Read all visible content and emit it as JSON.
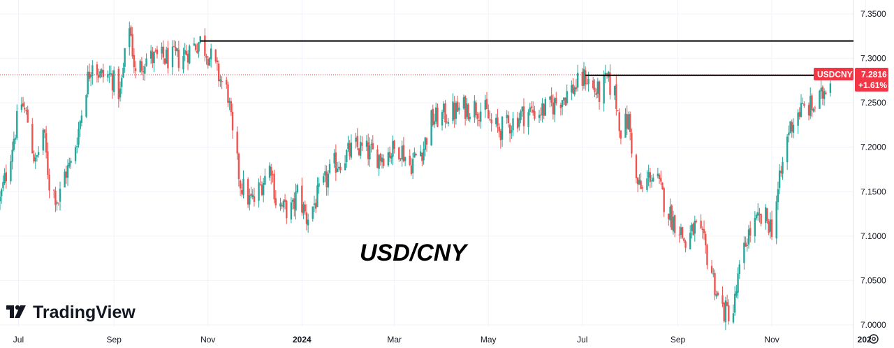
{
  "chart_data": {
    "type": "candlestick",
    "symbol": "USDCNY",
    "annotation": "USD/CNY",
    "brand": "TradingView",
    "last_price": "7.2816",
    "change_pct": "+1.61%",
    "ylim": [
      7.0,
      7.36
    ],
    "y_ticks": [
      "7.3500",
      "7.3000",
      "7.2500",
      "7.2000",
      "7.1500",
      "7.1000",
      "7.0500",
      "7.0000"
    ],
    "y_tick_values": [
      7.35,
      7.3,
      7.25,
      7.2,
      7.15,
      7.1,
      7.05,
      7.0
    ],
    "x_ticks": [
      "Jul",
      "Sep",
      "Nov",
      "2024",
      "Mar",
      "May",
      "Jul",
      "Sep",
      "Nov",
      "202"
    ],
    "x_tick_bold": [
      false,
      false,
      false,
      true,
      false,
      false,
      false,
      false,
      false,
      true
    ],
    "x_range": [
      "2023-06-19",
      "2024-12-24"
    ],
    "x_tick_dates": [
      "2023-07-01",
      "2023-09-01",
      "2023-11-01",
      "2024-01-01",
      "2024-03-01",
      "2024-05-01",
      "2024-07-01",
      "2024-09-01",
      "2024-11-01",
      "2025-01-01"
    ],
    "resistance_levels": [
      {
        "price": 7.3196,
        "from": "2023-10-27"
      },
      {
        "price": 7.281,
        "from": "2024-07-03"
      }
    ],
    "colors": {
      "up": "#26a69a",
      "down": "#ef5350",
      "line": "#000000",
      "grid": "#f0f3fa",
      "badge": "#f23645",
      "price_line": "#f23645"
    },
    "anchors": [
      [
        "2023-06-19",
        7.14
      ],
      [
        "2023-06-23",
        7.17
      ],
      [
        "2023-06-29",
        7.22
      ],
      [
        "2023-07-03",
        7.25
      ],
      [
        "2023-07-07",
        7.23
      ],
      [
        "2023-07-12",
        7.18
      ],
      [
        "2023-07-17",
        7.22
      ],
      [
        "2023-07-21",
        7.16
      ],
      [
        "2023-07-27",
        7.14
      ],
      [
        "2023-07-31",
        7.17
      ],
      [
        "2023-08-04",
        7.18
      ],
      [
        "2023-08-09",
        7.22
      ],
      [
        "2023-08-14",
        7.27
      ],
      [
        "2023-08-18",
        7.3
      ],
      [
        "2023-08-23",
        7.28
      ],
      [
        "2023-08-30",
        7.28
      ],
      [
        "2023-09-05",
        7.26
      ],
      [
        "2023-09-11",
        7.34
      ],
      [
        "2023-09-15",
        7.28
      ],
      [
        "2023-09-21",
        7.3
      ],
      [
        "2023-09-29",
        7.3
      ],
      [
        "2023-10-06",
        7.3
      ],
      [
        "2023-10-13",
        7.3
      ],
      [
        "2023-10-20",
        7.31
      ],
      [
        "2023-10-27",
        7.32
      ],
      [
        "2023-11-03",
        7.3
      ],
      [
        "2023-11-08",
        7.28
      ],
      [
        "2023-11-14",
        7.26
      ],
      [
        "2023-11-17",
        7.21
      ],
      [
        "2023-11-22",
        7.16
      ],
      [
        "2023-11-28",
        7.14
      ],
      [
        "2023-12-01",
        7.14
      ],
      [
        "2023-12-06",
        7.16
      ],
      [
        "2023-12-12",
        7.18
      ],
      [
        "2023-12-15",
        7.14
      ],
      [
        "2023-12-20",
        7.13
      ],
      [
        "2023-12-26",
        7.13
      ],
      [
        "2023-12-29",
        7.15
      ],
      [
        "2024-01-04",
        7.12
      ],
      [
        "2024-01-10",
        7.14
      ],
      [
        "2024-01-16",
        7.16
      ],
      [
        "2024-01-22",
        7.18
      ],
      [
        "2024-01-29",
        7.19
      ],
      [
        "2024-02-05",
        7.2
      ],
      [
        "2024-02-12",
        7.195
      ],
      [
        "2024-02-20",
        7.19
      ],
      [
        "2024-02-27",
        7.195
      ],
      [
        "2024-03-05",
        7.2
      ],
      [
        "2024-03-11",
        7.18
      ],
      [
        "2024-03-15",
        7.19
      ],
      [
        "2024-03-20",
        7.2
      ],
      [
        "2024-03-25",
        7.23
      ],
      [
        "2024-04-01",
        7.235
      ],
      [
        "2024-04-09",
        7.24
      ],
      [
        "2024-04-16",
        7.245
      ],
      [
        "2024-04-23",
        7.245
      ],
      [
        "2024-04-29",
        7.24
      ],
      [
        "2024-05-03",
        7.225
      ],
      [
        "2024-05-08",
        7.22
      ],
      [
        "2024-05-14",
        7.225
      ],
      [
        "2024-05-21",
        7.235
      ],
      [
        "2024-05-27",
        7.24
      ],
      [
        "2024-06-03",
        7.24
      ],
      [
        "2024-06-10",
        7.245
      ],
      [
        "2024-06-17",
        7.255
      ],
      [
        "2024-06-24",
        7.265
      ],
      [
        "2024-07-01",
        7.275
      ],
      [
        "2024-07-03",
        7.28
      ],
      [
        "2024-07-08",
        7.265
      ],
      [
        "2024-07-12",
        7.26
      ],
      [
        "2024-07-17",
        7.275
      ],
      [
        "2024-07-22",
        7.26
      ],
      [
        "2024-07-26",
        7.22
      ],
      [
        "2024-07-31",
        7.23
      ],
      [
        "2024-08-05",
        7.16
      ],
      [
        "2024-08-09",
        7.15
      ],
      [
        "2024-08-14",
        7.17
      ],
      [
        "2024-08-19",
        7.16
      ],
      [
        "2024-08-23",
        7.14
      ],
      [
        "2024-08-28",
        7.12
      ],
      [
        "2024-09-02",
        7.11
      ],
      [
        "2024-09-06",
        7.09
      ],
      [
        "2024-09-12",
        7.11
      ],
      [
        "2024-09-18",
        7.09
      ],
      [
        "2024-09-23",
        7.06
      ],
      [
        "2024-09-27",
        7.03
      ],
      [
        "2024-10-01",
        7.015
      ],
      [
        "2024-10-07",
        7.015
      ],
      [
        "2024-10-10",
        7.05
      ],
      [
        "2024-10-16",
        7.1
      ],
      [
        "2024-10-22",
        7.115
      ],
      [
        "2024-10-28",
        7.12
      ],
      [
        "2024-11-01",
        7.11
      ],
      [
        "2024-11-06",
        7.16
      ],
      [
        "2024-11-12",
        7.22
      ],
      [
        "2024-11-18",
        7.24
      ],
      [
        "2024-11-25",
        7.245
      ],
      [
        "2024-11-28",
        7.245
      ],
      [
        "2024-12-03",
        7.255
      ],
      [
        "2024-12-06",
        7.27
      ],
      [
        "2024-12-09",
        7.282
      ]
    ]
  }
}
